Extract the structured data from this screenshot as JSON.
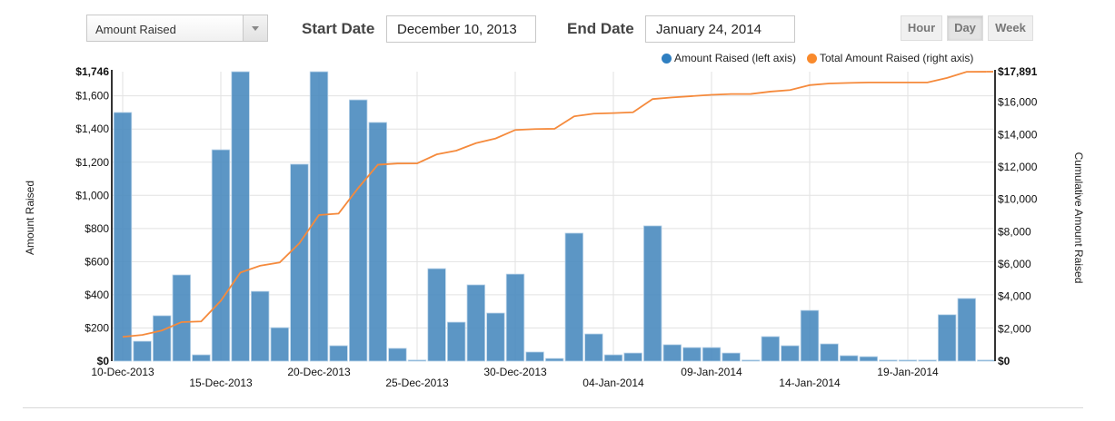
{
  "controls": {
    "metric_select": {
      "value": "Amount Raised"
    },
    "start_date_label": "Start Date",
    "start_date_value": "December 10, 2013",
    "end_date_label": "End Date",
    "end_date_value": "January 24, 2014",
    "granularity": [
      {
        "label": "Hour",
        "active": false
      },
      {
        "label": "Day",
        "active": true
      },
      {
        "label": "Week",
        "active": false
      }
    ]
  },
  "colors": {
    "bar": "#4a8bbf",
    "line": "#f58a3c",
    "legend_bar_dot": "#2f7fc1",
    "legend_line_dot": "#f98a2c"
  },
  "chart_data": {
    "type": "bar",
    "title": "",
    "xlabel": "",
    "ylabel": "Amount Raised",
    "y2label": "Cumulative Amount Raised",
    "ylim": [
      0,
      1746
    ],
    "y2lim": [
      0,
      17891
    ],
    "grid": true,
    "legend_position": "top-right",
    "left_ticks": [
      "$0",
      "$200",
      "$400",
      "$600",
      "$800",
      "$1,000",
      "$1,200",
      "$1,400",
      "$1,600",
      "$1,746"
    ],
    "left_tick_values": [
      0,
      200,
      400,
      600,
      800,
      1000,
      1200,
      1400,
      1600,
      1746
    ],
    "right_ticks": [
      "$0",
      "$2,000",
      "$4,000",
      "$6,000",
      "$8,000",
      "$10,000",
      "$12,000",
      "$14,000",
      "$16,000",
      "$17,891"
    ],
    "right_tick_values": [
      0,
      2000,
      4000,
      6000,
      8000,
      10000,
      12000,
      14000,
      16000,
      17891
    ],
    "x_tick_labels": [
      {
        "label": "10-Dec-2013",
        "day_index": 0,
        "row": 0
      },
      {
        "label": "15-Dec-2013",
        "day_index": 5,
        "row": 1
      },
      {
        "label": "20-Dec-2013",
        "day_index": 10,
        "row": 0
      },
      {
        "label": "25-Dec-2013",
        "day_index": 15,
        "row": 1
      },
      {
        "label": "30-Dec-2013",
        "day_index": 20,
        "row": 0
      },
      {
        "label": "04-Jan-2014",
        "day_index": 25,
        "row": 1
      },
      {
        "label": "09-Jan-2014",
        "day_index": 30,
        "row": 0
      },
      {
        "label": "14-Jan-2014",
        "day_index": 35,
        "row": 1
      },
      {
        "label": "19-Jan-2014",
        "day_index": 40,
        "row": 0
      }
    ],
    "categories": [
      "10-Dec-2013",
      "11-Dec-2013",
      "12-Dec-2013",
      "13-Dec-2013",
      "14-Dec-2013",
      "15-Dec-2013",
      "16-Dec-2013",
      "17-Dec-2013",
      "18-Dec-2013",
      "19-Dec-2013",
      "20-Dec-2013",
      "21-Dec-2013",
      "22-Dec-2013",
      "23-Dec-2013",
      "24-Dec-2013",
      "25-Dec-2013",
      "26-Dec-2013",
      "27-Dec-2013",
      "28-Dec-2013",
      "29-Dec-2013",
      "30-Dec-2013",
      "31-Dec-2013",
      "01-Jan-2014",
      "02-Jan-2014",
      "03-Jan-2014",
      "04-Jan-2014",
      "05-Jan-2014",
      "06-Jan-2014",
      "07-Jan-2014",
      "08-Jan-2014",
      "09-Jan-2014",
      "10-Jan-2014",
      "11-Jan-2014",
      "12-Jan-2014",
      "13-Jan-2014",
      "14-Jan-2014",
      "15-Jan-2014",
      "16-Jan-2014",
      "17-Jan-2014",
      "18-Jan-2014",
      "19-Jan-2014",
      "20-Jan-2014",
      "21-Jan-2014",
      "22-Jan-2014",
      "23-Jan-2014"
    ],
    "series": [
      {
        "name": "Amount Raised (left axis)",
        "type": "bar",
        "axis": "left",
        "values": [
          1500,
          120,
          274,
          520,
          38,
          1275,
          1746,
          421,
          202,
          1188,
          1746,
          93,
          1576,
          1440,
          77,
          5,
          558,
          235,
          460,
          290,
          525,
          55,
          16,
          772,
          164,
          38,
          49,
          816,
          99,
          82,
          82,
          49,
          2,
          148,
          93,
          306,
          104,
          33,
          27,
          1,
          1,
          1,
          280,
          378,
          3
        ]
      },
      {
        "name": "Total Amount Raised (right axis)",
        "type": "line",
        "axis": "right",
        "values": [
          1500,
          1620,
          1894,
          2414,
          2452,
          3727,
          5473,
          5894,
          6096,
          7284,
          9030,
          9123,
          10699,
          12139,
          12216,
          12221,
          12779,
          13014,
          13474,
          13764,
          14289,
          14344,
          14360,
          15132,
          15296,
          15334,
          15383,
          16199,
          16298,
          16380,
          16462,
          16511,
          16513,
          16661,
          16754,
          17060,
          17164,
          17197,
          17224,
          17225,
          17226,
          17227,
          17507,
          17885,
          17888
        ]
      }
    ]
  }
}
